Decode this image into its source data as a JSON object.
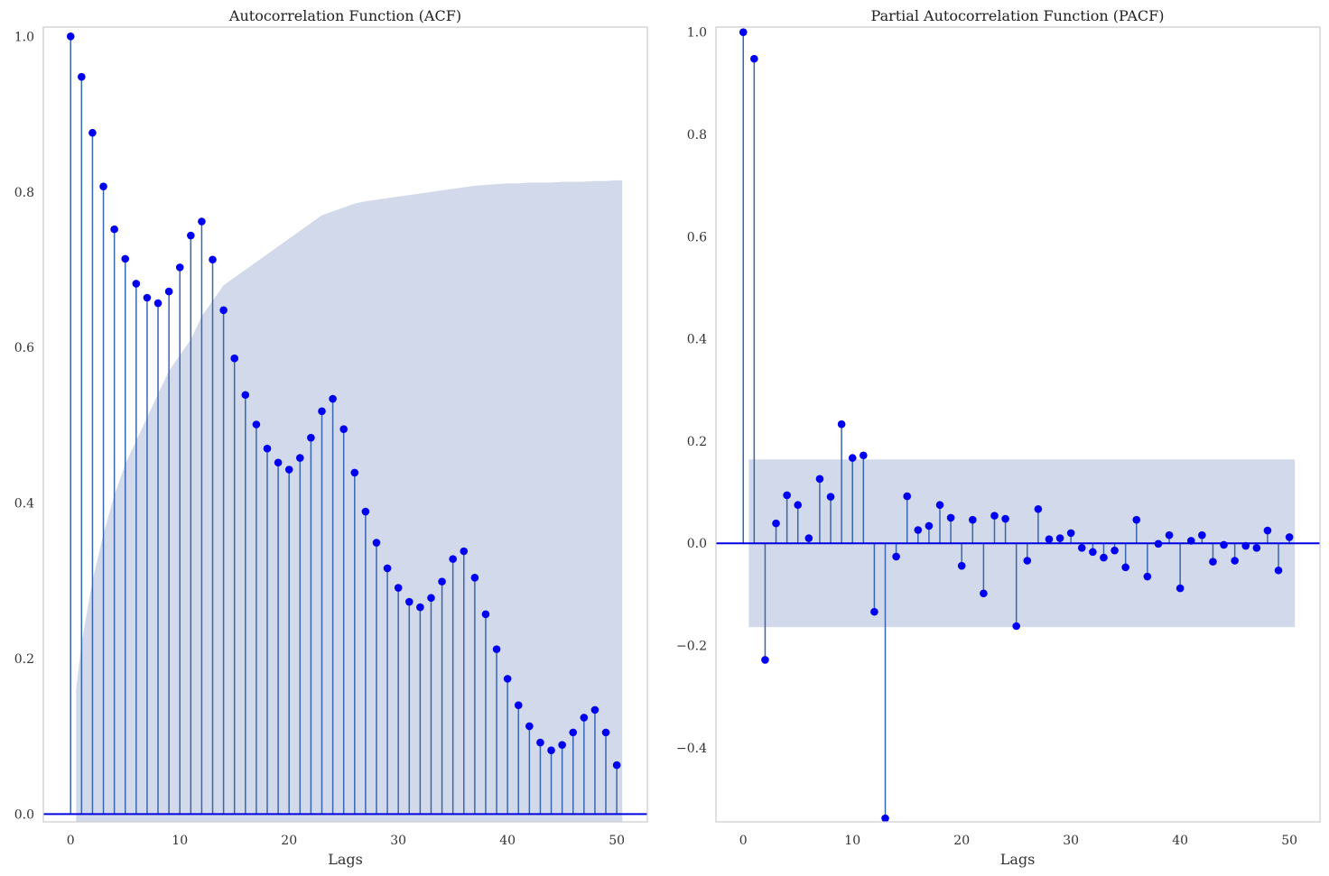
{
  "chart_data": [
    {
      "type": "stem",
      "title": "Autocorrelation Function (ACF)",
      "xlabel": "Lags",
      "ylabel": "",
      "xlim": [
        -2.5,
        52.8
      ],
      "ylim": [
        -0.01,
        1.012
      ],
      "xticks": [
        "0",
        "10",
        "20",
        "30",
        "40",
        "50"
      ],
      "yticks": [
        "0.0",
        "0.2",
        "0.4",
        "0.6",
        "0.8",
        "1.0"
      ],
      "grid": false,
      "band_color": "#c2cce3",
      "stem_color": "#3a66b0",
      "marker_color": "#0000f0",
      "x": [
        0,
        1,
        2,
        3,
        4,
        5,
        6,
        7,
        8,
        9,
        10,
        11,
        12,
        13,
        14,
        15,
        16,
        17,
        18,
        19,
        20,
        21,
        22,
        23,
        24,
        25,
        26,
        27,
        28,
        29,
        30,
        31,
        32,
        33,
        34,
        35,
        36,
        37,
        38,
        39,
        40,
        41,
        42,
        43,
        44,
        45,
        46,
        47,
        48,
        49,
        50
      ],
      "values": [
        1.0,
        0.948,
        0.876,
        0.807,
        0.752,
        0.714,
        0.682,
        0.664,
        0.657,
        0.672,
        0.703,
        0.744,
        0.762,
        0.713,
        0.648,
        0.586,
        0.539,
        0.501,
        0.47,
        0.452,
        0.443,
        0.458,
        0.484,
        0.518,
        0.534,
        0.495,
        0.439,
        0.389,
        0.349,
        0.316,
        0.291,
        0.273,
        0.266,
        0.278,
        0.299,
        0.328,
        0.338,
        0.304,
        0.257,
        0.212,
        0.174,
        0.14,
        0.113,
        0.092,
        0.082,
        0.089,
        0.105,
        0.124,
        0.134,
        0.105,
        0.063
      ],
      "confint_x": [
        0.5,
        1,
        2,
        3,
        4,
        5,
        6,
        7,
        8,
        9,
        10,
        11,
        12,
        13,
        14,
        15,
        16,
        17,
        18,
        19,
        20,
        21,
        22,
        23,
        24,
        25,
        26,
        27,
        28,
        29,
        30,
        31,
        32,
        33,
        34,
        35,
        36,
        37,
        38,
        39,
        40,
        41,
        42,
        43,
        44,
        45,
        46,
        47,
        48,
        49,
        50,
        50.5
      ],
      "confint_upper": [
        0.16,
        0.22,
        0.3,
        0.36,
        0.41,
        0.45,
        0.48,
        0.51,
        0.54,
        0.57,
        0.59,
        0.61,
        0.64,
        0.66,
        0.68,
        0.69,
        0.7,
        0.71,
        0.72,
        0.73,
        0.74,
        0.75,
        0.76,
        0.77,
        0.775,
        0.78,
        0.785,
        0.788,
        0.79,
        0.792,
        0.794,
        0.796,
        0.798,
        0.8,
        0.802,
        0.804,
        0.806,
        0.808,
        0.809,
        0.81,
        0.811,
        0.811,
        0.812,
        0.812,
        0.812,
        0.813,
        0.813,
        0.813,
        0.814,
        0.814,
        0.815,
        0.815
      ],
      "confint_lower": -0.01
    },
    {
      "type": "stem",
      "title": "Partial Autocorrelation Function (PACF)",
      "xlabel": "Lags",
      "ylabel": "",
      "xlim": [
        -2.5,
        52.8
      ],
      "ylim": [
        -0.545,
        1.01
      ],
      "xticks": [
        "0",
        "10",
        "20",
        "30",
        "40",
        "50"
      ],
      "yticks": [
        "−0.4",
        "−0.2",
        "0.0",
        "0.2",
        "0.4",
        "0.6",
        "0.8",
        "1.0"
      ],
      "grid": false,
      "band_color": "#c2cce3",
      "stem_color": "#3a66b0",
      "marker_color": "#0000f0",
      "x": [
        0,
        1,
        2,
        3,
        4,
        5,
        6,
        7,
        8,
        9,
        10,
        11,
        12,
        13,
        14,
        15,
        16,
        17,
        18,
        19,
        20,
        21,
        22,
        23,
        24,
        25,
        26,
        27,
        28,
        29,
        30,
        31,
        32,
        33,
        34,
        35,
        36,
        37,
        38,
        39,
        40,
        41,
        42,
        43,
        44,
        45,
        46,
        47,
        48,
        49,
        50
      ],
      "values": [
        1.0,
        0.948,
        -0.228,
        0.039,
        0.094,
        0.075,
        0.01,
        0.126,
        0.091,
        0.233,
        0.167,
        0.172,
        -0.134,
        -0.538,
        -0.026,
        0.092,
        0.026,
        0.034,
        0.075,
        0.05,
        -0.044,
        0.046,
        -0.098,
        0.054,
        0.048,
        -0.162,
        -0.034,
        0.067,
        0.008,
        0.01,
        0.02,
        -0.009,
        -0.017,
        -0.028,
        -0.014,
        -0.047,
        0.046,
        -0.065,
        -0.001,
        0.016,
        -0.088,
        0.005,
        0.016,
        -0.036,
        -0.003,
        -0.034,
        -0.005,
        -0.009,
        0.025,
        -0.053,
        0.012
      ],
      "confint_x": [
        0.5,
        50.5
      ],
      "confint_upper": [
        0.164,
        0.164
      ],
      "confint_lower": -0.164
    }
  ]
}
